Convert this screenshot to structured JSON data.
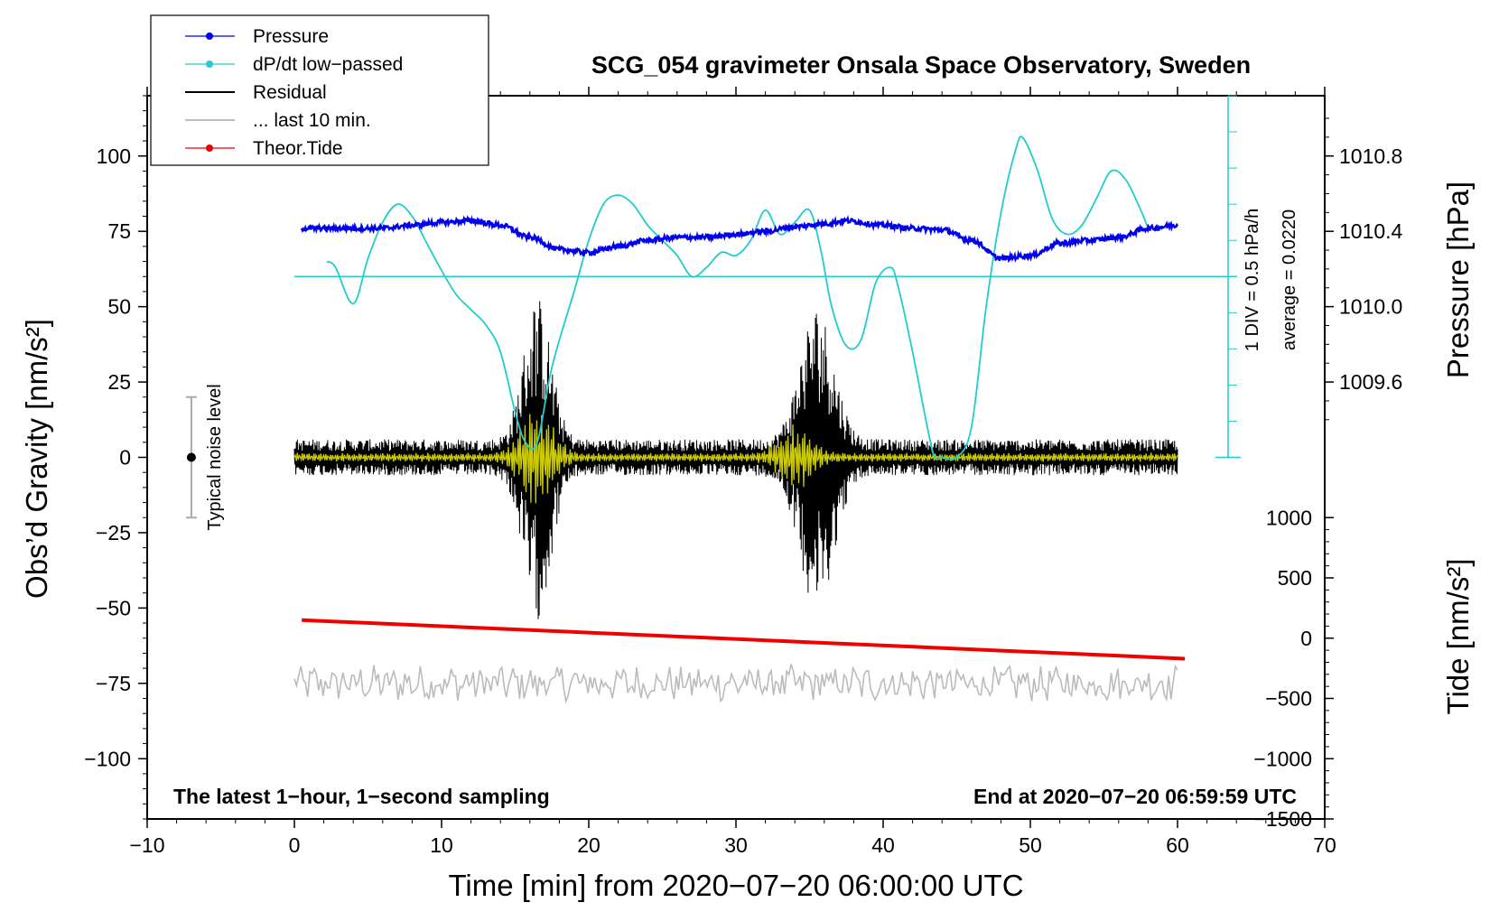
{
  "chart_data": {
    "type": "line",
    "title": "SCG_054 gravimeter Onsala Space Observatory, Sweden",
    "xlabel": "Time [min] from 2020−07−20 06:00:00 UTC",
    "ylabel_left": "Obs’d Gravity [nm/s²]",
    "ylabel_pressure_main": "Pressure [hPa]",
    "ylabel_tide_main": "Tide [nm/s²]",
    "xlim": [
      -10,
      70
    ],
    "ylim": [
      -120,
      120
    ],
    "x_ticks": [
      {
        "v": -10,
        "label": "−10"
      },
      {
        "v": 0,
        "label": "0"
      },
      {
        "v": 10,
        "label": "10"
      },
      {
        "v": 20,
        "label": "20"
      },
      {
        "v": 30,
        "label": "30"
      },
      {
        "v": 40,
        "label": "40"
      },
      {
        "v": 50,
        "label": "50"
      },
      {
        "v": 60,
        "label": "60"
      },
      {
        "v": 70,
        "label": "70"
      }
    ],
    "y_ticks_left": [
      {
        "v": 100,
        "label": "100"
      },
      {
        "v": 75,
        "label": "75"
      },
      {
        "v": 50,
        "label": "50"
      },
      {
        "v": 25,
        "label": "25"
      },
      {
        "v": 0,
        "label": "0"
      },
      {
        "v": -25,
        "label": "−25"
      },
      {
        "v": -50,
        "label": "−50"
      },
      {
        "v": -75,
        "label": "−75"
      },
      {
        "v": -100,
        "label": "−100"
      }
    ],
    "pressure_axis": {
      "map": {
        "pressure": [
          1009.6,
          1010.8
        ],
        "gravity": [
          25,
          100
        ]
      },
      "ticks": [
        {
          "v": 1010.8,
          "label": "1010.8"
        },
        {
          "v": 1010.4,
          "label": "1010.4"
        },
        {
          "v": 1010.0,
          "label": "1010.0"
        },
        {
          "v": 1009.6,
          "label": "1009.6"
        }
      ]
    },
    "tide_axis": {
      "map": {
        "tide": [
          -1500,
          1000
        ],
        "gravity": [
          -120,
          -20
        ]
      },
      "ticks": [
        {
          "v": 1000,
          "label": "1000"
        },
        {
          "v": 500,
          "label": "500"
        },
        {
          "v": 0,
          "label": "0"
        },
        {
          "v": -500,
          "label": "−500"
        },
        {
          "v": -1000,
          "label": "−1000"
        },
        {
          "v": -1500,
          "label": "−1500"
        }
      ]
    },
    "legend": [
      {
        "label": "Pressure",
        "color": "#0000ee",
        "marker": true
      },
      {
        "label": "dP/dt low−passed",
        "color": "#22cccc",
        "marker": true
      },
      {
        "label": "Residual",
        "color": "#000000",
        "marker": false
      },
      {
        "label": "... last 10 min.",
        "color": "#bbbbbb",
        "marker": false
      },
      {
        "label": "Theor.Tide",
        "color": "#ee0000",
        "marker": true
      }
    ],
    "legend_position": "top-left",
    "dpdt_scale": {
      "baseline_gravity": 60,
      "label_div": "1 DIV = 0.5 hPa/h",
      "label_avg": "average = 0.0220"
    },
    "noise_label": "Typical noise level",
    "noise_bar": {
      "x": -7,
      "y": 0,
      "half_range": 20
    },
    "note_left": "The latest 1−hour, 1−second sampling",
    "note_right": "End at 2020−07−20 06:59:59 UTC",
    "series": [
      {
        "name": "Pressure",
        "color": "#0000ee",
        "x": [
          0.5,
          2,
          4,
          6,
          8,
          10,
          12,
          14,
          16,
          18,
          20,
          22,
          24,
          26,
          28,
          30,
          32,
          34,
          36,
          37.5,
          40,
          42,
          44,
          46,
          48,
          50,
          52,
          54,
          56,
          58,
          60
        ],
        "y": [
          76,
          76,
          76,
          76,
          77,
          78,
          78.5,
          77,
          73,
          69,
          68,
          70,
          72,
          73,
          73,
          74,
          75,
          76.5,
          77.5,
          78.5,
          77,
          76,
          75.5,
          72,
          66,
          67,
          71,
          72,
          73,
          76,
          77
        ]
      },
      {
        "name": "dP/dt low-passed",
        "color": "#22cccc",
        "x": [
          2.2,
          2.8,
          4,
          5,
          6,
          7,
          8,
          9,
          10,
          11,
          12,
          13,
          14,
          15,
          15.7,
          16.5,
          17.5,
          19,
          20,
          21,
          22,
          23,
          24,
          25,
          26,
          27,
          28,
          29,
          30,
          31,
          32,
          33,
          34,
          35,
          35.8,
          36.5,
          37.5,
          38.5,
          39.5,
          40.5,
          41,
          42,
          43,
          43.5,
          44,
          45,
          46,
          47,
          48,
          49,
          49.5,
          50.5,
          51.5,
          52.5,
          53.5,
          54.5,
          55.5,
          56.5,
          57.5,
          58
        ],
        "y": [
          65,
          63,
          51,
          66,
          78,
          84,
          80,
          71,
          62,
          54,
          49,
          44,
          35,
          15,
          5,
          5,
          30,
          55,
          72,
          84,
          87,
          84,
          77,
          72,
          67,
          60,
          63,
          68,
          67,
          72,
          82,
          74,
          78,
          82,
          68,
          50,
          37,
          39,
          58,
          63,
          57,
          35,
          10,
          0,
          0,
          0,
          10,
          50,
          81,
          102,
          106,
          95,
          79,
          74,
          77,
          86,
          95,
          92,
          82,
          76
        ]
      },
      {
        "name": "Theor.Tide",
        "color": "#ee0000",
        "x": [
          0.5,
          60.5
        ],
        "y": [
          150,
          -170
        ]
      }
    ],
    "residual": {
      "x_range": [
        0,
        60
      ],
      "baseline": 0,
      "noise_amplitude": 6,
      "bursts": [
        {
          "center": 16.5,
          "width": 1.3,
          "amplitude": 48
        },
        {
          "center": 35.5,
          "width": 1.6,
          "amplitude": 45
        }
      ]
    },
    "last10": {
      "x_range": [
        0,
        60
      ],
      "baseline": -75,
      "amplitude": 5
    },
    "low_passed_residual": {
      "color": "#cccc00",
      "bursts": [
        {
          "center": 16.5,
          "width": 1.5,
          "amplitude": 16
        },
        {
          "center": 34,
          "width": 1.5,
          "amplitude": 10
        }
      ]
    }
  }
}
